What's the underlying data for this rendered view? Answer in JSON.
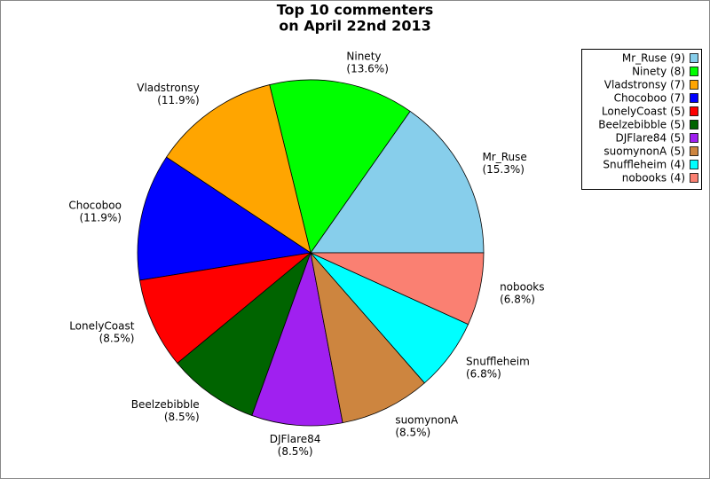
{
  "chart_data": {
    "type": "pie",
    "title": [
      "Top 10 commenters",
      "on April 22nd 2013"
    ],
    "categories": [
      "Mr_Ruse",
      "Ninety",
      "Vladstronsy",
      "Chocoboo",
      "LonelyCoast",
      "Beelzebibble",
      "DJFlare84",
      "suomynonA",
      "Snuffleheim",
      "nobooks"
    ],
    "values": [
      15.3,
      13.6,
      11.9,
      11.9,
      8.5,
      8.5,
      8.5,
      8.5,
      6.8,
      6.8
    ],
    "value_labels": [
      "(15.3%)",
      "(13.6%)",
      "(11.9%)",
      "(11.9%)",
      "(8.5%)",
      "(8.5%)",
      "(8.5%)",
      "(8.5%)",
      "(6.8%)",
      "(6.8%)"
    ],
    "colors": [
      "#87ceeb",
      "#00ff00",
      "#ffa500",
      "#0000ff",
      "#ff0000",
      "#006400",
      "#a020f0",
      "#cd853f",
      "#00ffff",
      "#fa8072"
    ],
    "legend_labels": [
      "Mr_Ruse (9)",
      "Ninety (8)",
      "Vladstronsy (7)",
      "Chocoboo (7)",
      "LonelyCoast (5)",
      "Beelzebibble (5)",
      "DJFlare84 (5)",
      "suomynonA (5)",
      "Snuffleheim (4)",
      "nobooks (4)"
    ],
    "legend_position": "top-right"
  }
}
